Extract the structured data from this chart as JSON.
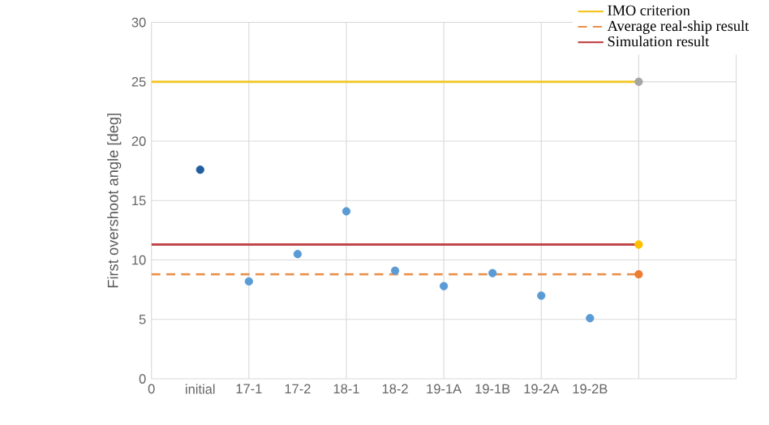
{
  "chart_data": {
    "type": "scatter",
    "ylabel": "First overshoot angle [deg]",
    "categories": [
      "0",
      "initial",
      "17-1",
      "17-2",
      "18-1",
      "18-2",
      "19-1A",
      "19-1B",
      "19-2A",
      "19-2B",
      null,
      null,
      null
    ],
    "ylim": [
      0,
      30
    ],
    "yticks": [
      0,
      5,
      10,
      15,
      20,
      25,
      30
    ],
    "grid": true,
    "legend": "top right",
    "series": [
      {
        "marker": "circle",
        "values": [
          null,
          17.6,
          8.2,
          10.5,
          14.1,
          9.1,
          7.8,
          8.9,
          7.0,
          5.1,
          null,
          null,
          null
        ],
        "colors": [
          null,
          "#1f5fa0",
          "#5b9bd5",
          "#5b9bd5",
          "#5b9bd5",
          "#5b9bd5",
          "#5b9bd5",
          "#5b9bd5",
          "#5b9bd5",
          "#5b9bd5",
          null,
          null,
          null
        ]
      },
      {
        "type": "line",
        "name": "IMO criterion",
        "color": "#f2c522",
        "values": [
          25,
          25,
          25,
          25,
          25,
          25,
          25,
          25,
          25,
          25,
          25,
          null,
          null
        ],
        "line_style": "solid",
        "marker": "none"
      },
      {
        "type": "line",
        "name": "Average real-ship result",
        "color": "#e8904a",
        "values": [
          8.8,
          8.8,
          8.8,
          8.8,
          8.8,
          8.8,
          8.8,
          8.8,
          8.8,
          8.8,
          8.8,
          null,
          null
        ],
        "line_style": "dashed",
        "marker": "none"
      },
      {
        "type": "line",
        "name": "Simulation result",
        "color": "#c0484a",
        "values": [
          11.3,
          11.3,
          11.3,
          11.3,
          11.3,
          11.3,
          11.3,
          11.3,
          11.3,
          11.3,
          11.3,
          null,
          null
        ],
        "line_style": "solid",
        "marker": "none"
      },
      {
        "marker": "circle",
        "values": [
          null,
          null,
          null,
          null,
          null,
          null,
          null,
          null,
          null,
          null,
          25,
          null,
          null
        ],
        "colors": [
          null,
          null,
          null,
          null,
          null,
          null,
          null,
          null,
          null,
          null,
          "#a5a5a5",
          null,
          null
        ]
      },
      {
        "marker": "circle",
        "values": [
          null,
          null,
          null,
          null,
          null,
          null,
          null,
          null,
          null,
          null,
          11.3,
          null,
          null
        ],
        "colors": [
          null,
          null,
          null,
          null,
          null,
          null,
          null,
          null,
          null,
          null,
          "#ffc000",
          null,
          null
        ]
      },
      {
        "marker": "circle",
        "values": [
          null,
          null,
          null,
          null,
          null,
          null,
          null,
          null,
          null,
          null,
          8.8,
          null,
          null
        ],
        "colors": [
          null,
          null,
          null,
          null,
          null,
          null,
          null,
          null,
          null,
          null,
          "#ed7d31",
          null,
          null
        ]
      }
    ]
  }
}
